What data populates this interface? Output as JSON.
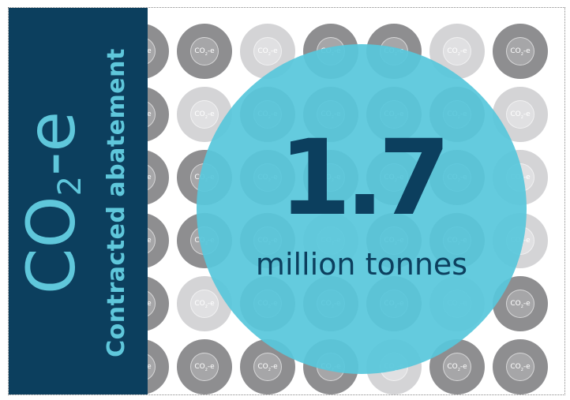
{
  "sidebar": {
    "title_main": "CO",
    "title_sub": "2",
    "title_tail": "-e",
    "subtitle": "Contracted abatement"
  },
  "coin": {
    "label_main": "CO",
    "label_sub": "2",
    "label_tail": "-e"
  },
  "headline": {
    "value": "1.7",
    "unit": "million tonnes"
  },
  "colors": {
    "sidebar_bg": "#0c3f5e",
    "accent_teal": "#5fc7db",
    "coin_dark": "#8e8e90",
    "coin_light": "#d4d4d6"
  }
}
